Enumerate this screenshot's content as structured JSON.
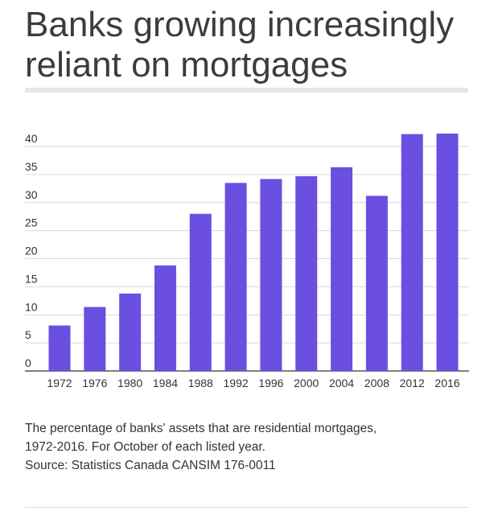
{
  "title": "Banks growing increasingly reliant on mortgages",
  "caption": {
    "line1": "The percentage of banks' assets that are residential mortgages,",
    "line2": "1972-2016. For October of each listed year.",
    "source": "Source: Statistics Canada CANSIM 176-0011"
  },
  "colors": {
    "bar": "#6a4fe0",
    "grid": "#d9d9d9",
    "axis": "#555555",
    "text": "#333333"
  },
  "chart_data": {
    "type": "bar",
    "title": "",
    "xlabel": "",
    "ylabel": "",
    "categories": [
      "1972",
      "1976",
      "1980",
      "1984",
      "1988",
      "1992",
      "1996",
      "2000",
      "2004",
      "2008",
      "2012",
      "2016"
    ],
    "values": [
      8.1,
      11.4,
      13.8,
      18.8,
      28.0,
      33.5,
      34.2,
      34.7,
      36.3,
      31.2,
      42.2,
      42.3
    ],
    "ylim": [
      0,
      40
    ],
    "yticks": [
      0,
      5,
      10,
      15,
      20,
      25,
      30,
      35,
      40
    ],
    "grid": true,
    "legend": "none"
  }
}
